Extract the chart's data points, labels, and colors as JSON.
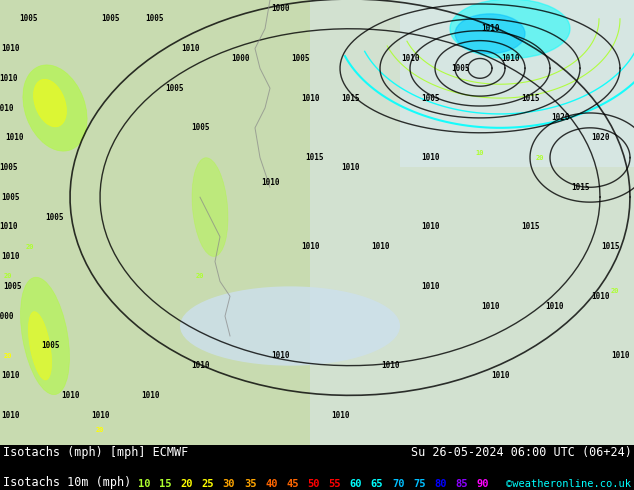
{
  "title_left": "Isotachs (mph) [mph] ECMWF",
  "title_right": "Su 26-05-2024 06:00 UTC (06+24)",
  "legend_label": "Isotachs 10m (mph)",
  "copyright": "©weatheronline.co.uk",
  "isotach_values": [
    "10",
    "15",
    "20",
    "25",
    "30",
    "35",
    "40",
    "45",
    "50",
    "55",
    "60",
    "65",
    "70",
    "75",
    "80",
    "85",
    "90"
  ],
  "isotach_colors": [
    "#adff2f",
    "#adff2f",
    "#ffff00",
    "#ffff00",
    "#ffa500",
    "#ffa500",
    "#ff6600",
    "#ff6600",
    "#ff0000",
    "#ff0000",
    "#00ffff",
    "#00ffff",
    "#00bfff",
    "#00bfff",
    "#0000ff",
    "#8b00ff",
    "#ff00ff"
  ],
  "bg_color": "#000000",
  "map_color": "#b5d4a0",
  "fig_width": 6.34,
  "fig_height": 4.9,
  "dpi": 100
}
